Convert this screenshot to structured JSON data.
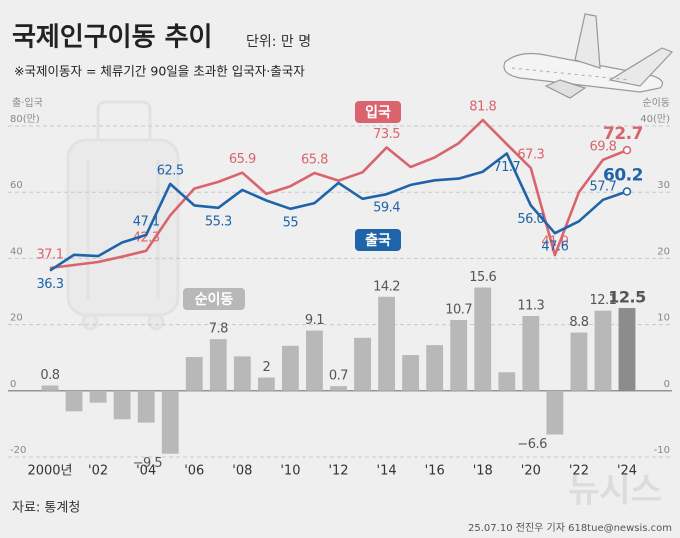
{
  "chart_data": {
    "type": "combo",
    "title": "국제인구이동 추이",
    "unit": "단위: 만 명",
    "note": "※국제이동자 = 체류기간 90일을 초과한 입국자·출국자",
    "ylabel": "출·입국",
    "y2label": "순이동",
    "categories": [
      "2000년",
      null,
      "'02",
      null,
      "'04",
      null,
      "'06",
      null,
      "'08",
      null,
      "'10",
      null,
      "'12",
      null,
      "'14",
      null,
      "'16",
      null,
      "'18",
      null,
      "'20",
      null,
      "'22",
      null,
      "'24"
    ],
    "series": [
      {
        "name": "입국",
        "type": "line",
        "color": "#d9646d",
        "values": [
          37.1,
          38.0,
          38.9,
          40.5,
          42.3,
          53.0,
          61.1,
          63.1,
          65.9,
          59.5,
          61.8,
          65.8,
          63.5,
          66.0,
          73.5,
          67.6,
          70.5,
          74.8,
          81.8,
          74.5,
          67.3,
          41.0,
          60.0,
          69.8,
          72.7
        ],
        "value_labels": [
          "37.1",
          null,
          null,
          null,
          "42.3",
          null,
          null,
          null,
          "65.9",
          null,
          null,
          "65.8",
          null,
          null,
          "73.5",
          null,
          null,
          null,
          "81.8",
          null,
          "67.3",
          "41.0",
          null,
          "69.8",
          "72.7"
        ]
      },
      {
        "name": "출국",
        "type": "line",
        "color": "#1f64a9",
        "values": [
          36.3,
          41.1,
          40.7,
          44.8,
          47.1,
          62.5,
          56.0,
          55.3,
          60.7,
          57.5,
          55,
          56.7,
          62.8,
          58.0,
          59.4,
          62.2,
          63.6,
          64.1,
          66.2,
          71.7,
          56.0,
          47.6,
          51.2,
          57.7,
          60.2
        ],
        "value_labels": [
          "36.3",
          null,
          null,
          null,
          "47.1",
          "62.5",
          null,
          "55.3",
          null,
          null,
          "55",
          null,
          null,
          null,
          "59.4",
          null,
          null,
          null,
          null,
          "71.7",
          "56.0",
          "47.6",
          null,
          "57.7",
          "60.2"
        ]
      },
      {
        "name": "순이동",
        "type": "bar",
        "axis": "y2",
        "color": "#b8b8b8",
        "last_color": "#8c8c8c",
        "values": [
          0.8,
          -3.1,
          -1.8,
          -4.3,
          -4.8,
          -9.5,
          5.1,
          7.8,
          5.2,
          2,
          6.8,
          9.1,
          0.7,
          8.0,
          14.2,
          5.4,
          6.9,
          10.7,
          15.6,
          2.8,
          11.3,
          -6.6,
          8.8,
          12.1,
          12.5
        ],
        "value_labels": [
          "0.8",
          null,
          null,
          null,
          null,
          "−9.5",
          null,
          "7.8",
          null,
          "2",
          null,
          "9.1",
          "0.7",
          null,
          "14.2",
          null,
          null,
          "10.7",
          "15.6",
          null,
          "11.3",
          "−6.6",
          "8.8",
          "12.1",
          "12.5"
        ]
      }
    ],
    "ylim": [
      -20,
      80
    ],
    "yticks": [
      -20,
      0,
      20,
      40,
      60,
      {
        "value": 80,
        "label": "80(만)"
      }
    ],
    "y2lim": [
      -10,
      40
    ],
    "y2ticks": [
      -10,
      0,
      10,
      20,
      30,
      {
        "value": 40,
        "label": "40(만)"
      }
    ],
    "grid": true
  },
  "footer": {
    "source": "자료: 통계청",
    "credit": "25.07.10 전진우 기자 618tue@newsis.com",
    "watermark": "뉴시스"
  }
}
